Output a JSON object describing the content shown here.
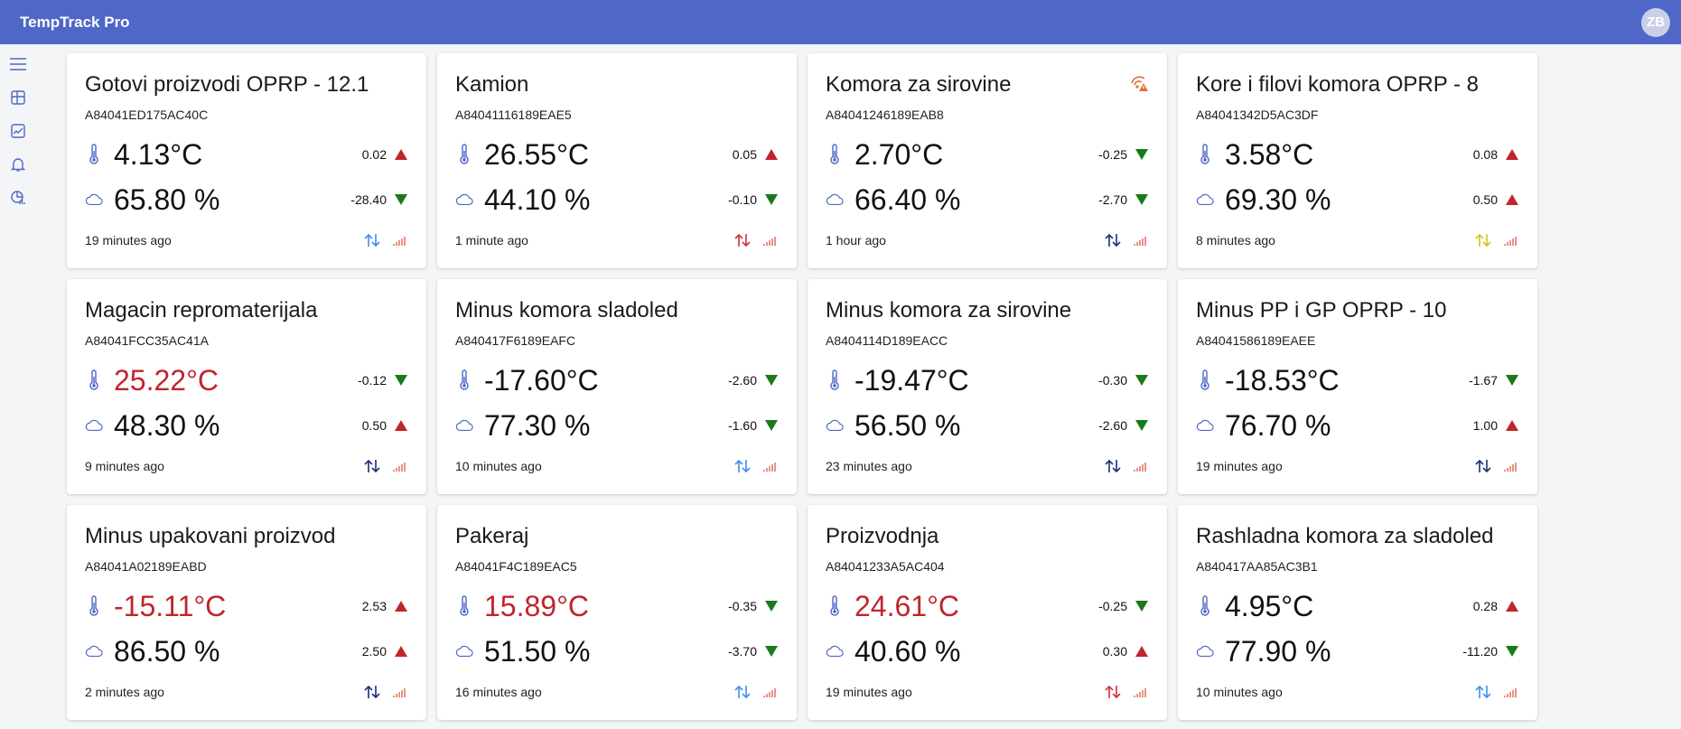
{
  "app": {
    "title": "TempTrack Pro",
    "user_initials": "ZB"
  },
  "sidebar": {
    "items": [
      "menu-icon",
      "dashboard-icon",
      "chart-check-icon",
      "bell-icon",
      "report-icon"
    ]
  },
  "colors": {
    "header": "#4f67c6",
    "up": "#c0252c",
    "down": "#1a7a1a",
    "hot": "#c0252c"
  },
  "sensors": [
    {
      "name": "Gotovi proizvodi OPRP - 12.1",
      "id": "A84041ED175AC40C",
      "temp": "4.13°C",
      "temp_delta": "0.02",
      "temp_dir": "up",
      "hum": "65.80 %",
      "hum_delta": "-28.40",
      "hum_dir": "down",
      "ago": "19 minutes ago",
      "sync": "#3d8df5",
      "hot": false,
      "alert": false
    },
    {
      "name": "Kamion",
      "id": "A84041116189EAE5",
      "temp": "26.55°C",
      "temp_delta": "0.05",
      "temp_dir": "up",
      "hum": "44.10 %",
      "hum_delta": "-0.10",
      "hum_dir": "down",
      "ago": "1 minute ago",
      "sync": "#d0303a",
      "hot": false,
      "alert": false
    },
    {
      "name": "Komora za sirovine",
      "id": "A84041246189EAB8",
      "temp": "2.70°C",
      "temp_delta": "-0.25",
      "temp_dir": "down",
      "hum": "66.40 %",
      "hum_delta": "-2.70",
      "hum_dir": "down",
      "ago": "1 hour ago",
      "sync": "#1e2e7a",
      "hot": false,
      "alert": true
    },
    {
      "name": "Kore i filovi komora OPRP - 8",
      "id": "A84041342D5AC3DF",
      "temp": "3.58°C",
      "temp_delta": "0.08",
      "temp_dir": "up",
      "hum": "69.30 %",
      "hum_delta": "0.50",
      "hum_dir": "up",
      "ago": "8 minutes ago",
      "sync": "#d4c21a",
      "hot": false,
      "alert": false
    },
    {
      "name": "Magacin repromaterijala",
      "id": "A84041FCC35AC41A",
      "temp": "25.22°C",
      "temp_delta": "-0.12",
      "temp_dir": "down",
      "hum": "48.30 %",
      "hum_delta": "0.50",
      "hum_dir": "up",
      "ago": "9 minutes ago",
      "sync": "#1e2e7a",
      "hot": true,
      "alert": false
    },
    {
      "name": "Minus komora sladoled",
      "id": "A840417F6189EAFC",
      "temp": "-17.60°C",
      "temp_delta": "-2.60",
      "temp_dir": "down",
      "hum": "77.30 %",
      "hum_delta": "-1.60",
      "hum_dir": "down",
      "ago": "10 minutes ago",
      "sync": "#3d8df5",
      "hot": false,
      "alert": false
    },
    {
      "name": "Minus komora za sirovine",
      "id": "A8404114D189EACC",
      "temp": "-19.47°C",
      "temp_delta": "-0.30",
      "temp_dir": "down",
      "hum": "56.50 %",
      "hum_delta": "-2.60",
      "hum_dir": "down",
      "ago": "23 minutes ago",
      "sync": "#1e2e7a",
      "hot": false,
      "alert": false
    },
    {
      "name": "Minus PP i GP OPRP - 10",
      "id": "A84041586189EAEE",
      "temp": "-18.53°C",
      "temp_delta": "-1.67",
      "temp_dir": "down",
      "hum": "76.70 %",
      "hum_delta": "1.00",
      "hum_dir": "up",
      "ago": "19 minutes ago",
      "sync": "#1e2e7a",
      "hot": false,
      "alert": false
    },
    {
      "name": "Minus upakovani proizvod",
      "id": "A84041A02189EABD",
      "temp": "-15.11°C",
      "temp_delta": "2.53",
      "temp_dir": "up",
      "hum": "86.50 %",
      "hum_delta": "2.50",
      "hum_dir": "up",
      "ago": "2 minutes ago",
      "sync": "#1e2e7a",
      "hot": true,
      "alert": false
    },
    {
      "name": "Pakeraj",
      "id": "A84041F4C189EAC5",
      "temp": "15.89°C",
      "temp_delta": "-0.35",
      "temp_dir": "down",
      "hum": "51.50 %",
      "hum_delta": "-3.70",
      "hum_dir": "down",
      "ago": "16 minutes ago",
      "sync": "#3d8df5",
      "hot": true,
      "alert": false
    },
    {
      "name": "Proizvodnja",
      "id": "A84041233A5AC404",
      "temp": "24.61°C",
      "temp_delta": "-0.25",
      "temp_dir": "down",
      "hum": "40.60 %",
      "hum_delta": "0.30",
      "hum_dir": "up",
      "ago": "19 minutes ago",
      "sync": "#d0303a",
      "hot": true,
      "alert": false
    },
    {
      "name": "Rashladna komora za sladoled",
      "id": "A840417AA85AC3B1",
      "temp": "4.95°C",
      "temp_delta": "0.28",
      "temp_dir": "up",
      "hum": "77.90 %",
      "hum_delta": "-11.20",
      "hum_dir": "down",
      "ago": "10 minutes ago",
      "sync": "#3d8df5",
      "hot": false,
      "alert": false
    }
  ]
}
